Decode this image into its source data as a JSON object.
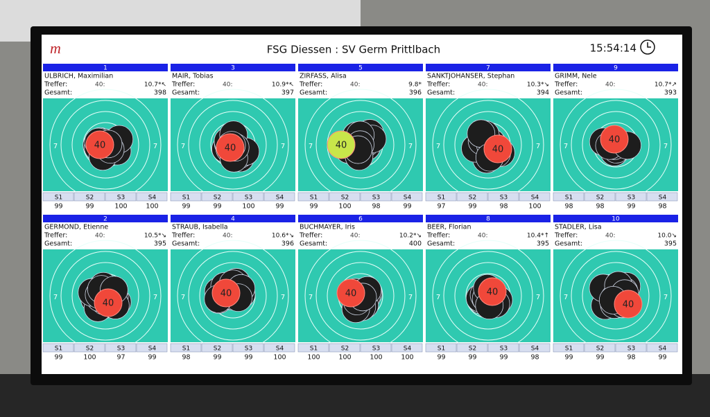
{
  "header": {
    "title": "FSG Diessen : SV Germ Prittlbach",
    "time": "15:54:14"
  },
  "labels": {
    "hits": "Treffer:",
    "total": "Gesamt:",
    "series": [
      "S1",
      "S2",
      "S3",
      "S4"
    ],
    "ring": "7"
  },
  "shooters": [
    {
      "number": "1",
      "name": "ULBRICH, Maximilian",
      "hits": "40:",
      "last": "10.7*↖",
      "total": 398,
      "series": [
        99,
        99,
        100,
        100
      ],
      "shot": "40",
      "shot_color": "#f0483a"
    },
    {
      "number": "3",
      "name": "MAIR, Tobias",
      "hits": "40:",
      "last": "10.9*↖",
      "total": 397,
      "series": [
        99,
        99,
        100,
        99
      ],
      "shot": "40",
      "shot_color": "#f0483a"
    },
    {
      "number": "5",
      "name": "ZIRFASS, Alisa",
      "hits": "40:",
      "last": "9.8*",
      "total": 396,
      "series": [
        99,
        100,
        98,
        99
      ],
      "shot": "40",
      "shot_color": "#c8e64a"
    },
    {
      "number": "7",
      "name": "SANKTJOHANSER, Stephan",
      "hits": "40:",
      "last": "10.3*↘",
      "total": 394,
      "series": [
        97,
        99,
        98,
        100
      ],
      "shot": "40",
      "shot_color": "#f0483a"
    },
    {
      "number": "9",
      "name": "GRIMM, Nele",
      "hits": "40:",
      "last": "10.7*↗",
      "total": 393,
      "series": [
        98,
        98,
        99,
        98
      ],
      "shot": "40",
      "shot_color": "#f0483a"
    },
    {
      "number": "2",
      "name": "GERMOND, Etienne",
      "hits": "40:",
      "last": "10.5*↘",
      "total": 395,
      "series": [
        99,
        100,
        97,
        99
      ],
      "shot": "40",
      "shot_color": "#f0483a"
    },
    {
      "number": "4",
      "name": "STRAUB, Isabella",
      "hits": "40:",
      "last": "10.6*↘",
      "total": 396,
      "series": [
        98,
        99,
        99,
        100
      ],
      "shot": "40",
      "shot_color": "#f0483a"
    },
    {
      "number": "6",
      "name": "BUCHMAYER, Iris",
      "hits": "40:",
      "last": "10.2*↘",
      "total": 400,
      "series": [
        100,
        100,
        100,
        100
      ],
      "shot": "40",
      "shot_color": "#f0483a"
    },
    {
      "number": "8",
      "name": "BEER, Florian",
      "hits": "40:",
      "last": "10.4*↑",
      "total": 395,
      "series": [
        99,
        99,
        99,
        98
      ],
      "shot": "40",
      "shot_color": "#f0483a"
    },
    {
      "number": "10",
      "name": "STADLER, Lisa",
      "hits": "40:",
      "last": "10.0↘",
      "total": 395,
      "series": [
        99,
        99,
        98,
        99
      ],
      "shot": "40",
      "shot_color": "#f0483a"
    }
  ]
}
